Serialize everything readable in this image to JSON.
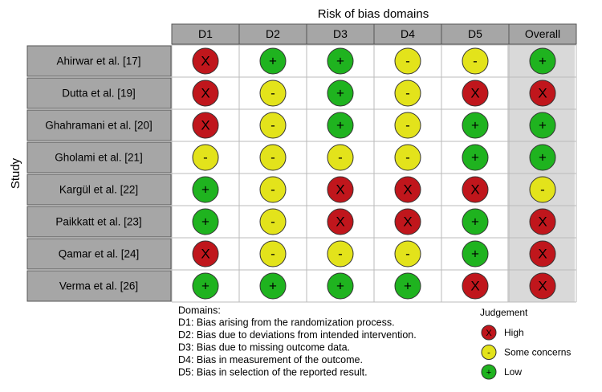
{
  "title": "Risk of bias domains",
  "y_label": "Study",
  "columns": [
    "D1",
    "D2",
    "D3",
    "D4",
    "D5",
    "Overall"
  ],
  "rows": [
    {
      "study": "Ahirwar et al. [17]",
      "cells": [
        "X",
        "+",
        "+",
        "-",
        "-",
        "+"
      ]
    },
    {
      "study": "Dutta et al. [19]",
      "cells": [
        "X",
        "-",
        "+",
        "-",
        "X",
        "X"
      ]
    },
    {
      "study": "Ghahramani et al. [20]",
      "cells": [
        "X",
        "-",
        "+",
        "-",
        "+",
        "+"
      ]
    },
    {
      "study": "Gholami et al. [21]",
      "cells": [
        "-",
        "-",
        "-",
        "-",
        "+",
        "+"
      ]
    },
    {
      "study": "Kargül et al. [22]",
      "cells": [
        "+",
        "-",
        "X",
        "X",
        "X",
        "-"
      ]
    },
    {
      "study": "Paikkatt et al. [23]",
      "cells": [
        "+",
        "-",
        "X",
        "X",
        "+",
        "X"
      ]
    },
    {
      "study": "Qamar et al. [24]",
      "cells": [
        "X",
        "-",
        "-",
        "-",
        "+",
        "X"
      ]
    },
    {
      "study": "Verma et al. [26]",
      "cells": [
        "+",
        "+",
        "+",
        "+",
        "X",
        "X"
      ]
    }
  ],
  "domains": {
    "heading": "Domains:",
    "lines": [
      "D1: Bias arising from the randomization process.",
      "D2: Bias due to deviations from intended intervention.",
      "D3: Bias due to missing outcome data.",
      "D4: Bias in measurement of the outcome.",
      "D5: Bias in selection of the reported result."
    ]
  },
  "judgement": {
    "heading": "Judgement",
    "items": [
      {
        "symbol": "X",
        "label": "High",
        "color": "#c0161c"
      },
      {
        "symbol": "-",
        "label": "Some concerns",
        "color": "#e3e31b"
      },
      {
        "symbol": "+",
        "label": "Low",
        "color": "#1fb31f"
      }
    ]
  }
}
